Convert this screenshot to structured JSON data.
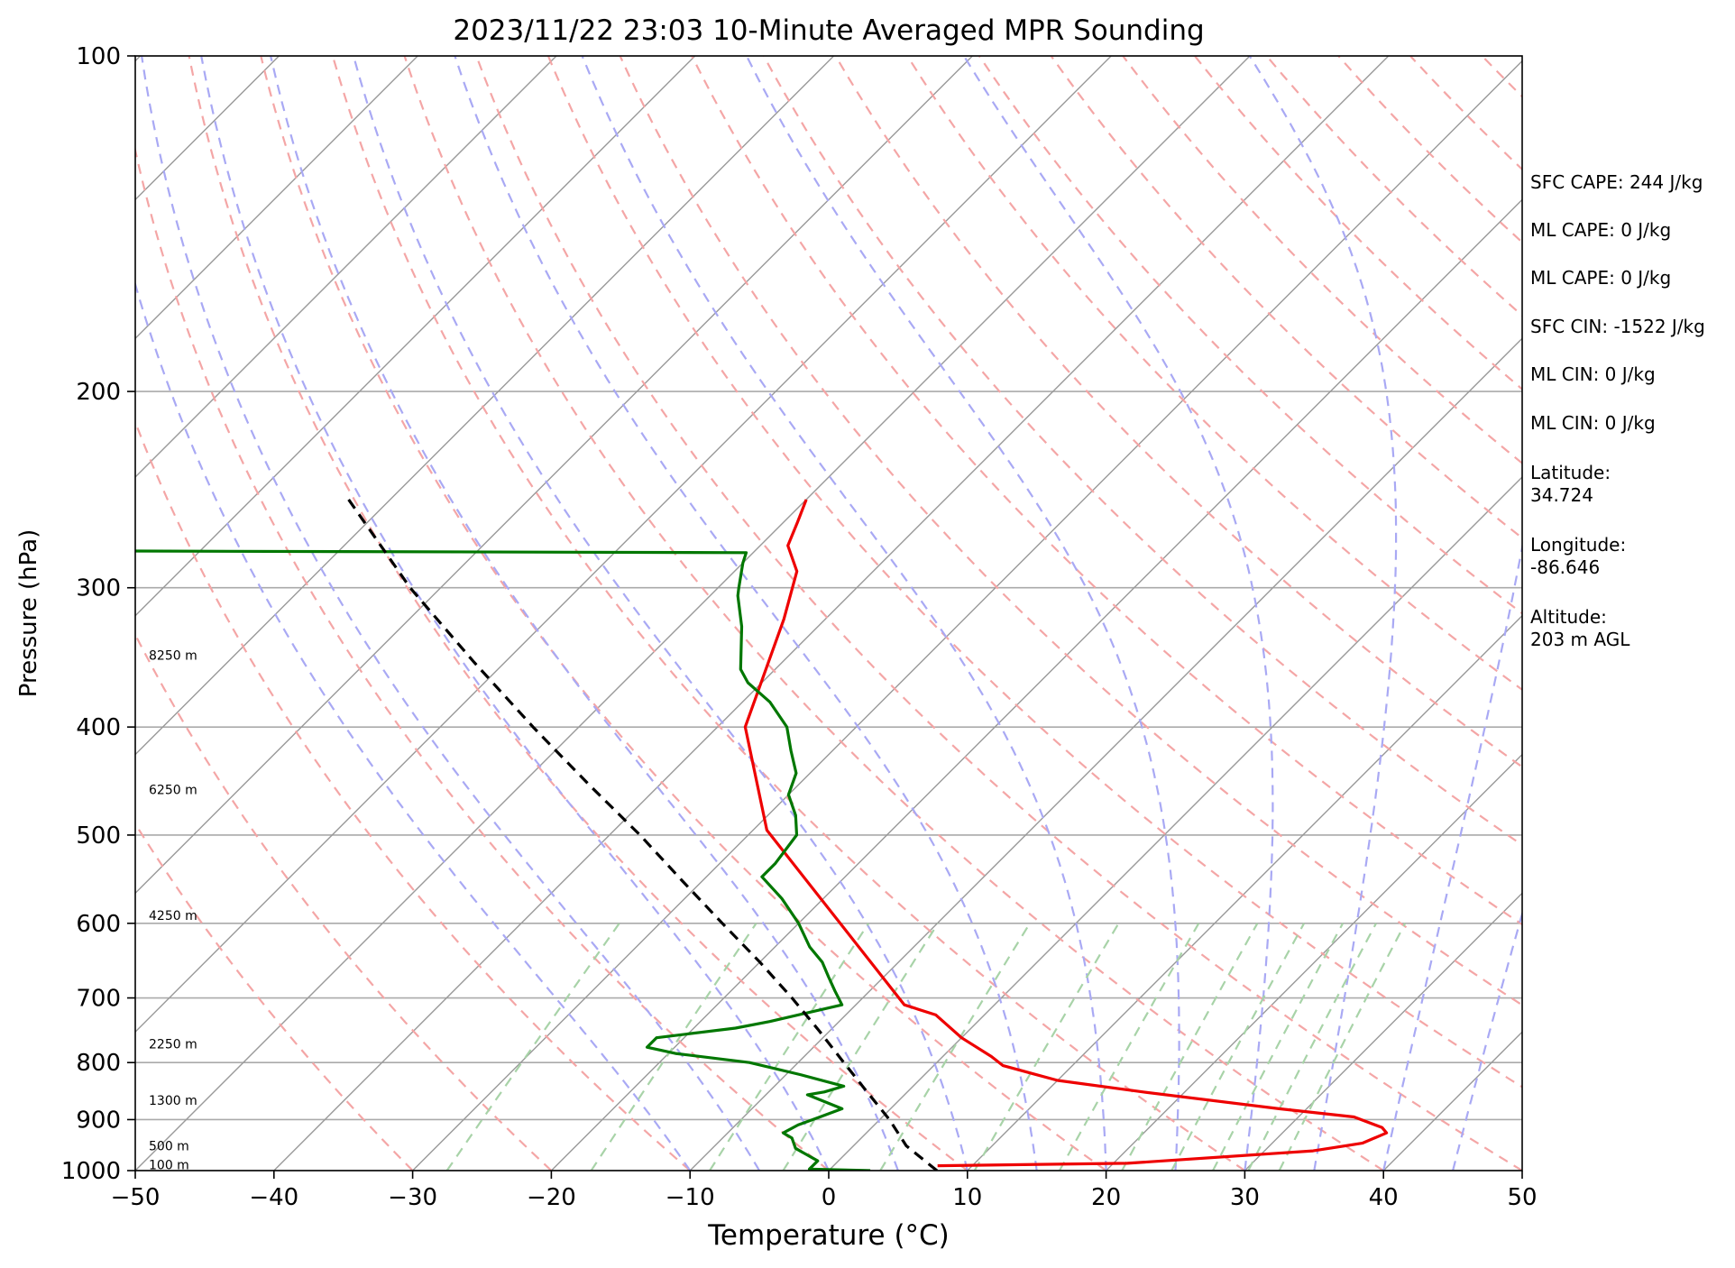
{
  "chart_data": {
    "type": "line",
    "title": "2023/11/22 23:03 10-Minute Averaged MPR Sounding",
    "xlabel": "Temperature (°C)",
    "ylabel": "Pressure (hPa)",
    "xlim": [
      -50,
      50
    ],
    "ylim": [
      1000,
      100
    ],
    "y_scale": "log",
    "skew_t": true,
    "x_ticks": [
      "−50",
      "−40",
      "−30",
      "−20",
      "−10",
      "0",
      "10",
      "20",
      "30",
      "40",
      "50"
    ],
    "y_ticks": [
      "1000",
      "900",
      "800",
      "700",
      "600",
      "500",
      "400",
      "300",
      "200",
      "100"
    ],
    "grid": true,
    "height_labels": [
      {
        "label": "100 m",
        "pressure": 988
      },
      {
        "label": "500 m",
        "pressure": 950
      },
      {
        "label": "1300 m",
        "pressure": 865
      },
      {
        "label": "2250 m",
        "pressure": 770
      },
      {
        "label": "4250 m",
        "pressure": 590
      },
      {
        "label": "6250 m",
        "pressure": 455
      },
      {
        "label": "8250 m",
        "pressure": 345
      }
    ],
    "series": [
      {
        "name": "",
        "role": "temperature",
        "color": "#ee0000",
        "points": [
          [
            990,
            7.5
          ],
          [
            985,
            21
          ],
          [
            960,
            33.5
          ],
          [
            945,
            36.5
          ],
          [
            925,
            37.5
          ],
          [
            915,
            36.8
          ],
          [
            895,
            34
          ],
          [
            880,
            28
          ],
          [
            850,
            17
          ],
          [
            830,
            10
          ],
          [
            805,
            5
          ],
          [
            790,
            3.5
          ],
          [
            760,
            0
          ],
          [
            725,
            -3.5
          ],
          [
            710,
            -6.5
          ],
          [
            495,
            -29
          ],
          [
            400,
            -38
          ],
          [
            320,
            -43
          ],
          [
            290,
            -45.5
          ],
          [
            275,
            -48
          ],
          [
            262,
            -49
          ],
          [
            250,
            -50
          ]
        ]
      },
      {
        "name": "",
        "role": "dewpoint",
        "color": "#007700",
        "points": [
          [
            1000,
            3
          ],
          [
            997,
            -1.5
          ],
          [
            990,
            -1.5
          ],
          [
            980,
            -1.5
          ],
          [
            965,
            -3
          ],
          [
            955,
            -4
          ],
          [
            935,
            -5
          ],
          [
            925,
            -6
          ],
          [
            910,
            -5.5
          ],
          [
            895,
            -4.5
          ],
          [
            880,
            -3.5
          ],
          [
            855,
            -7
          ],
          [
            850,
            -6
          ],
          [
            840,
            -5
          ],
          [
            820,
            -9
          ],
          [
            800,
            -13.5
          ],
          [
            785,
            -19.5
          ],
          [
            775,
            -22
          ],
          [
            760,
            -22
          ],
          [
            745,
            -17
          ],
          [
            735,
            -15
          ],
          [
            710,
            -11
          ],
          [
            690,
            -12.5
          ],
          [
            670,
            -14
          ],
          [
            650,
            -15.5
          ],
          [
            630,
            -17.5
          ],
          [
            600,
            -20
          ],
          [
            570,
            -23
          ],
          [
            545,
            -26
          ],
          [
            530,
            -26
          ],
          [
            500,
            -26.5
          ],
          [
            480,
            -28
          ],
          [
            460,
            -30
          ],
          [
            440,
            -31
          ],
          [
            420,
            -33
          ],
          [
            400,
            -35
          ],
          [
            380,
            -38
          ],
          [
            365,
            -41
          ],
          [
            355,
            -42.5
          ],
          [
            325,
            -45.5
          ],
          [
            305,
            -48
          ],
          [
            300,
            -48.5
          ],
          [
            285,
            -50
          ],
          [
            279,
            -50.5
          ],
          [
            278,
            -100
          ]
        ]
      },
      {
        "name": "",
        "role": "parcel",
        "color": "#000000",
        "points": [
          [
            1000,
            7.8
          ],
          [
            950,
            3.8
          ],
          [
            900,
            0.7
          ],
          [
            850,
            -2.9
          ],
          [
            800,
            -6.7
          ],
          [
            750,
            -10.7
          ],
          [
            700,
            -15.1
          ],
          [
            650,
            -20
          ],
          [
            600,
            -25.5
          ],
          [
            550,
            -31.4
          ],
          [
            500,
            -37.8
          ],
          [
            450,
            -45.2
          ],
          [
            400,
            -53.3
          ],
          [
            350,
            -62.2
          ],
          [
            300,
            -72.2
          ],
          [
            250,
            -83
          ]
        ]
      }
    ],
    "stats": [
      {
        "key": "SFC CAPE",
        "text": "SFC CAPE: 244 J/kg"
      },
      {
        "key": "ML CAPE",
        "text": "ML CAPE: 0 J/kg"
      },
      {
        "key": "ML CAPE",
        "text": "ML CAPE: 0 J/kg"
      },
      {
        "key": "SFC CIN",
        "text": "SFC CIN: -1522 J/kg"
      },
      {
        "key": "ML CIN",
        "text": "ML CIN: 0 J/kg"
      },
      {
        "key": "ML CIN",
        "text": "ML CIN: 0 J/kg"
      },
      {
        "key": "Latitude",
        "text": "Latitude:"
      },
      {
        "key": "Latitude value",
        "text": "34.724"
      },
      {
        "key": "Longitude",
        "text": "Longitude:"
      },
      {
        "key": "Longitude value",
        "text": "-86.646"
      },
      {
        "key": "Altitude",
        "text": "Altitude:"
      },
      {
        "key": "Altitude value",
        "text": "203 m AGL"
      }
    ],
    "colors": {
      "isotherm": "#999999",
      "dry_adiabat": "#f4a6a6",
      "moist_adiabat": "#a9a9f4",
      "mixing_ratio": "#a8d3a8",
      "isobar": "#aaaaaa"
    }
  }
}
